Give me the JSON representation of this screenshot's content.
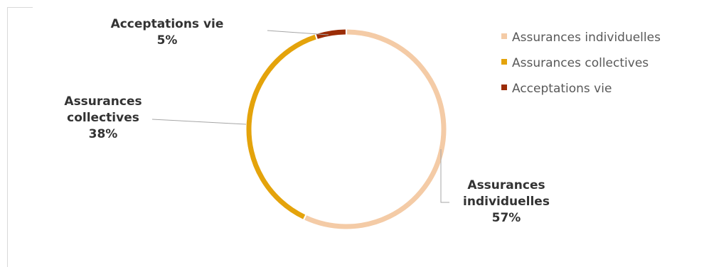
{
  "chart_data": {
    "type": "pie",
    "subtype": "donut",
    "title": "",
    "labels": [
      "Assurances individuelles",
      "Assurances collectives",
      "Acceptations vie"
    ],
    "values": [
      57,
      38,
      5
    ],
    "value_labels": [
      "57%",
      "38%",
      "5%"
    ],
    "colors": [
      "#f4cba6",
      "#e4a30b",
      "#9b2c06"
    ],
    "slice_labels": [
      [
        "Assurances",
        "individuelles"
      ],
      [
        "Assurances",
        "collectives"
      ],
      [
        "Acceptations vie"
      ]
    ],
    "legend": {
      "position": "right",
      "entries": [
        "Assurances individuelles",
        "Assurances collectives",
        "Acceptations vie"
      ]
    }
  }
}
